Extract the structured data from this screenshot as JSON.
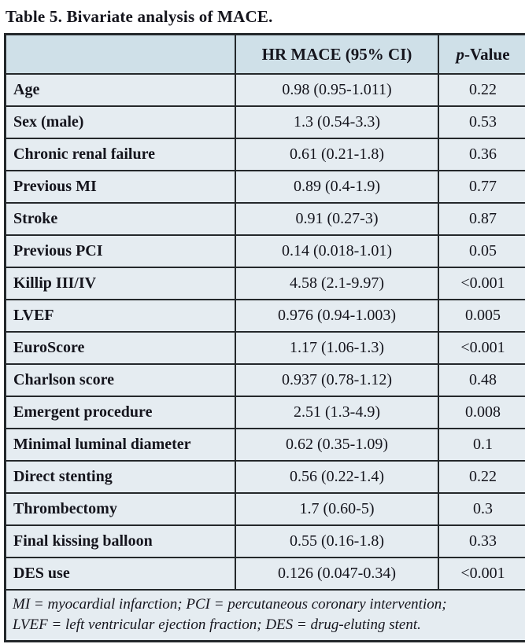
{
  "title": "Table 5. Bivariate analysis of MACE.",
  "colors": {
    "header_bg": "#cfe0e8",
    "row_bg": "#e5ecf1",
    "border": "#24282b",
    "text": "#15151d"
  },
  "table": {
    "header": {
      "label_col": "",
      "hr_col": "HR MACE (95% CI)",
      "p_col_italic": "p",
      "p_col_rest": "-Value"
    },
    "rows": [
      {
        "label": "Age",
        "hr": "0.98 (0.95-1.011)",
        "p": "0.22"
      },
      {
        "label": "Sex (male)",
        "hr": "1.3 (0.54-3.3)",
        "p": "0.53"
      },
      {
        "label": "Chronic renal failure",
        "hr": "0.61 (0.21-1.8)",
        "p": "0.36"
      },
      {
        "label": "Previous MI",
        "hr": "0.89 (0.4-1.9)",
        "p": "0.77"
      },
      {
        "label": "Stroke",
        "hr": "0.91 (0.27-3)",
        "p": "0.87"
      },
      {
        "label": "Previous PCI",
        "hr": "0.14 (0.018-1.01)",
        "p": "0.05"
      },
      {
        "label": "Killip III/IV",
        "hr": "4.58 (2.1-9.97)",
        "p": "<0.001"
      },
      {
        "label": "LVEF",
        "hr": "0.976 (0.94-1.003)",
        "p": "0.005"
      },
      {
        "label": "EuroScore",
        "hr": "1.17 (1.06-1.3)",
        "p": "<0.001"
      },
      {
        "label": "Charlson score",
        "hr": "0.937 (0.78-1.12)",
        "p": "0.48"
      },
      {
        "label": "Emergent procedure",
        "hr": "2.51 (1.3-4.9)",
        "p": "0.008"
      },
      {
        "label": "Minimal luminal diameter",
        "hr": "0.62 (0.35-1.09)",
        "p": "0.1"
      },
      {
        "label": "Direct stenting",
        "hr": "0.56 (0.22-1.4)",
        "p": "0.22"
      },
      {
        "label": "Thrombectomy",
        "hr": "1.7 (0.60-5)",
        "p": "0.3"
      },
      {
        "label": "Final kissing balloon",
        "hr": "0.55 (0.16-1.8)",
        "p": "0.33"
      },
      {
        "label": "DES use",
        "hr": "0.126 (0.047-0.34)",
        "p": "<0.001"
      }
    ],
    "footnote_line1": "MI = myocardial infarction; PCI = percutaneous coronary intervention;",
    "footnote_line2": "LVEF = left ventricular ejection fraction; DES = drug-eluting stent."
  }
}
